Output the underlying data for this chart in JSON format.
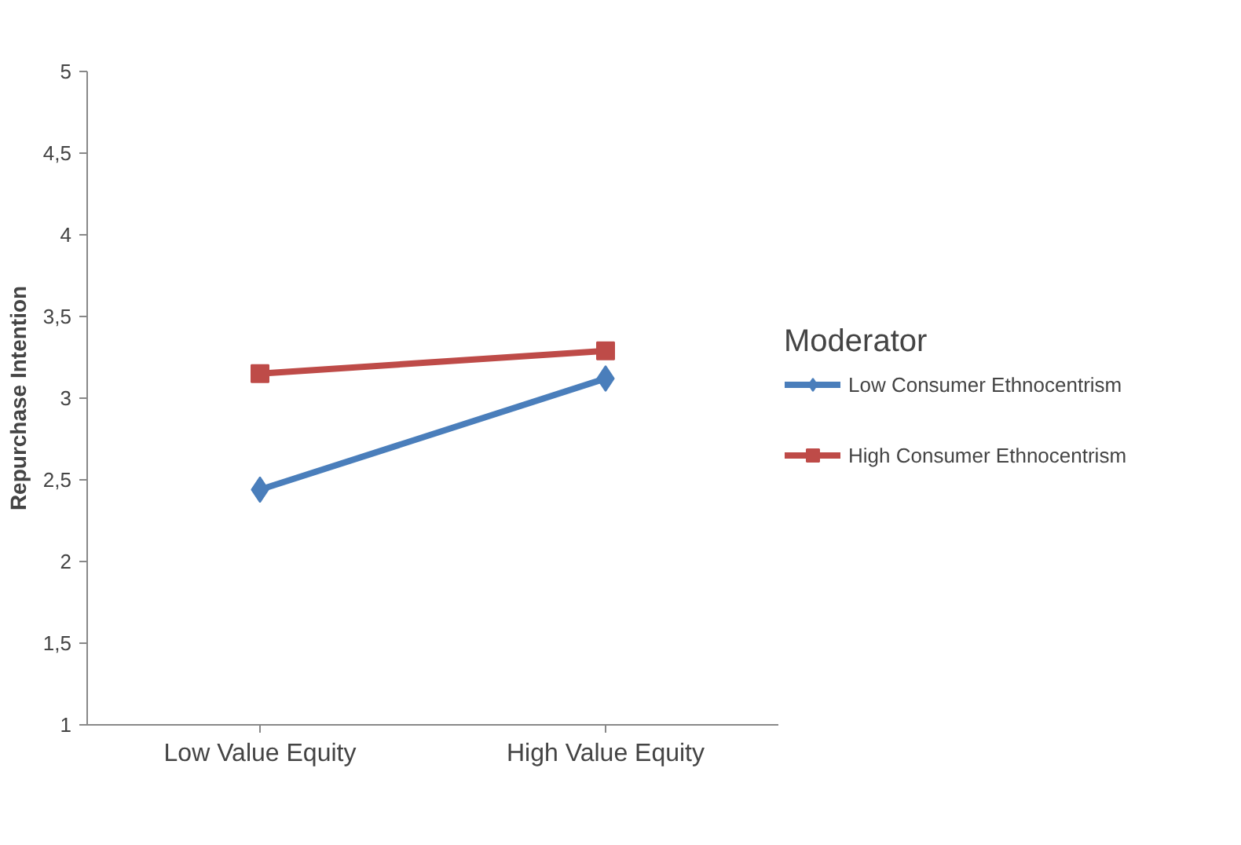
{
  "chart_data": {
    "type": "line",
    "ylabel": "Repurchase Intention",
    "legend_title": "Moderator",
    "legend": "right",
    "grid": false,
    "categories": [
      "Low Value Equity",
      "High Value Equity"
    ],
    "ylim": [
      1,
      5
    ],
    "yticks": [
      1,
      {
        "value": 1.5,
        "label": "1,5"
      },
      2,
      {
        "value": 2.5,
        "label": "2,5"
      },
      3,
      {
        "value": 3.5,
        "label": "3,5"
      },
      4,
      {
        "value": 4.5,
        "label": "4,5"
      },
      5
    ],
    "series": [
      {
        "name": "Low Consumer Ethnocentrism",
        "color": "#4a7ebb",
        "marker": "diamond",
        "values": [
          2.44,
          3.12
        ]
      },
      {
        "name": "High Consumer Ethnocentrism",
        "color": "#be4b48",
        "marker": "square",
        "values": [
          3.15,
          3.29
        ]
      }
    ]
  }
}
